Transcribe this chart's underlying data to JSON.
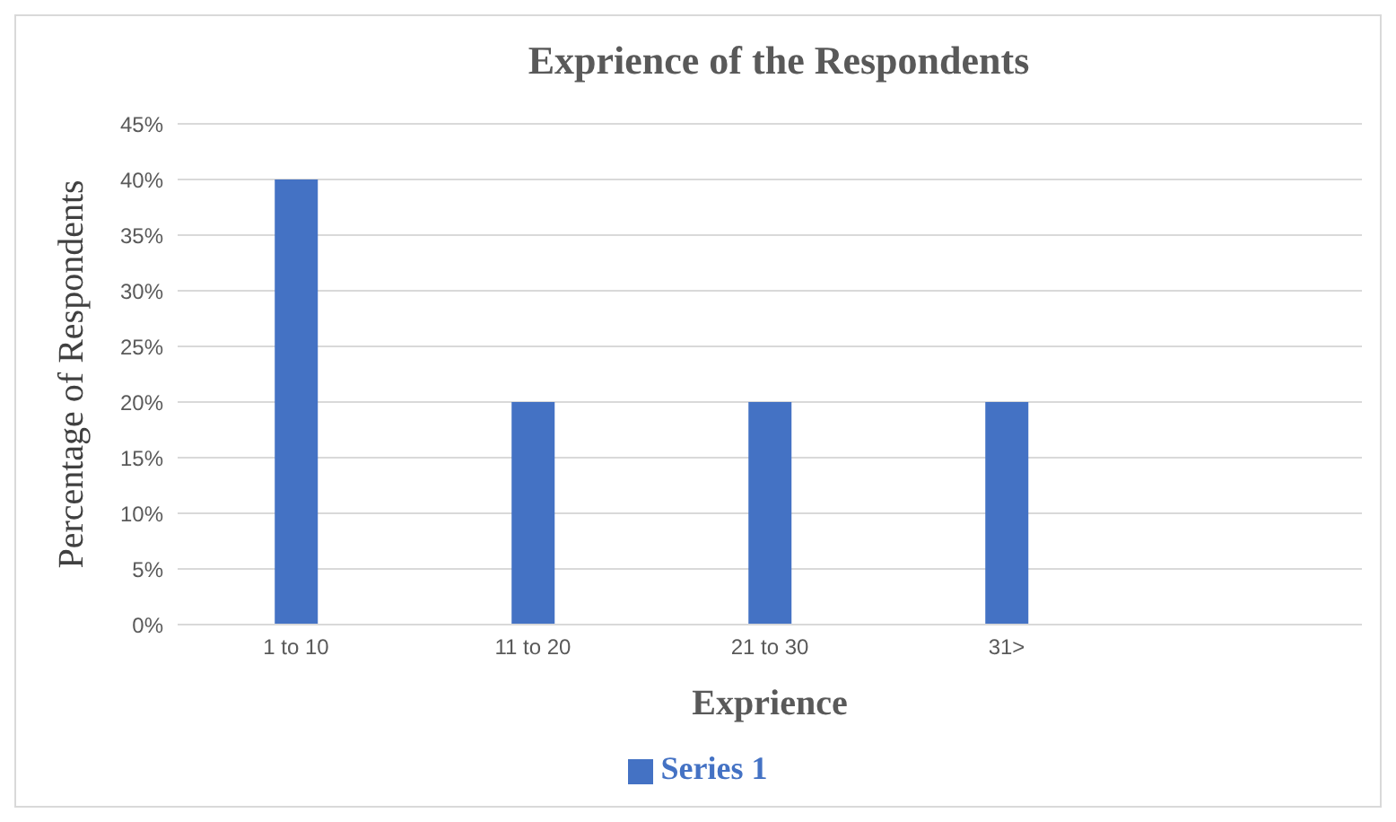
{
  "chart_data": {
    "type": "bar",
    "title": "Exprience of  the Respondents",
    "xlabel": "Exprience",
    "ylabel": "Percentage of Respondents",
    "categories": [
      "1 to 10",
      "11 to 20",
      "21 to 30",
      "31>",
      null
    ],
    "series": [
      {
        "name": "Series 1",
        "color": "#4472c4",
        "values": [
          40,
          20,
          20,
          20,
          null
        ]
      }
    ],
    "ylim": [
      0,
      45
    ],
    "yticks": [
      {
        "value": 0,
        "label": "0%"
      },
      {
        "value": 5,
        "label": "5%"
      },
      {
        "value": 10,
        "label": "10%"
      },
      {
        "value": 15,
        "label": "15%"
      },
      {
        "value": 20,
        "label": "20%"
      },
      {
        "value": 25,
        "label": "25%"
      },
      {
        "value": 30,
        "label": "30%"
      },
      {
        "value": 35,
        "label": "35%"
      },
      {
        "value": 40,
        "label": "40%"
      },
      {
        "value": 45,
        "label": "45%"
      }
    ],
    "grid": "y",
    "legend": "bottom"
  }
}
